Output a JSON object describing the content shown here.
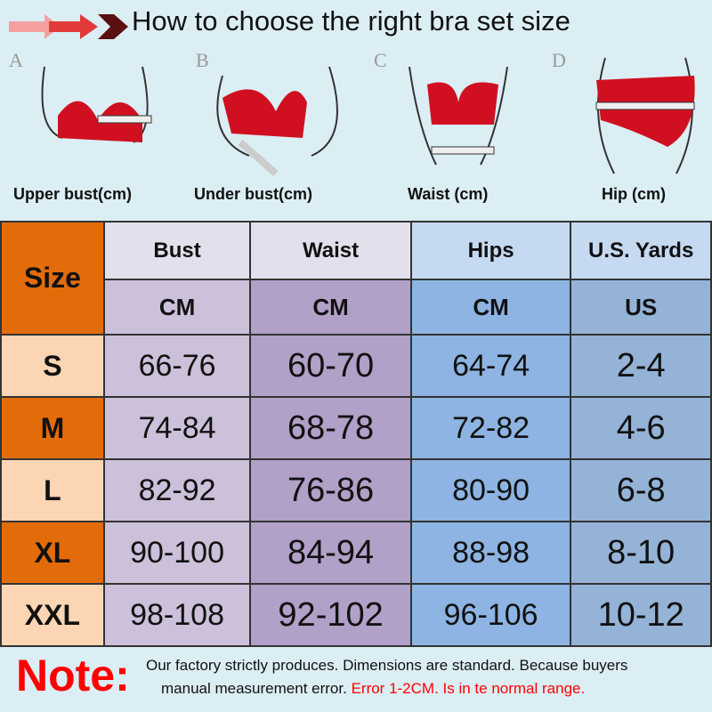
{
  "title": "How to choose the right bra set size",
  "figures": [
    {
      "letter": "A",
      "caption": "Upper bust(cm)"
    },
    {
      "letter": "B",
      "caption": "Under bust(cm)"
    },
    {
      "letter": "C",
      "caption": "Waist (cm)"
    },
    {
      "letter": "D",
      "caption": "Hip (cm)"
    }
  ],
  "table": {
    "size_header": "Size",
    "headers": [
      "Bust",
      "Waist",
      "Hips",
      "U.S. Yards"
    ],
    "units": [
      "CM",
      "CM",
      "CM",
      "US"
    ],
    "rows": [
      {
        "size": "S",
        "bust": "66-76",
        "waist": "60-70",
        "hips": "64-74",
        "us": "2-4"
      },
      {
        "size": "M",
        "bust": "74-84",
        "waist": "68-78",
        "hips": "72-82",
        "us": "4-6"
      },
      {
        "size": "L",
        "bust": "82-92",
        "waist": "76-86",
        "hips": "80-90",
        "us": "6-8"
      },
      {
        "size": "XL",
        "bust": "90-100",
        "waist": "84-94",
        "hips": "88-98",
        "us": "8-10"
      },
      {
        "size": "XXL",
        "bust": "98-108",
        "waist": "92-102",
        "hips": "96-106",
        "us": "10-12"
      }
    ]
  },
  "note": {
    "label": "Note:",
    "line1": "Our factory strictly produces.  Dimensions are standard.  Because buyers",
    "line2": "manual measurement error.",
    "line2_red": "Error 1-2CM.  Is in te normal range."
  },
  "colors": {
    "background": "#dbeef4",
    "orange": "#e36c0a",
    "peach": "#fcd5b4",
    "accent_red": "#ff0000"
  }
}
